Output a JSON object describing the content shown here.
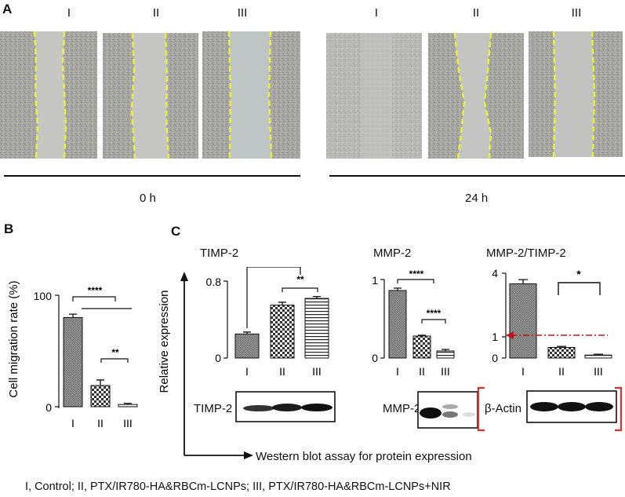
{
  "panelA": {
    "label": "A",
    "group_labels_0h": [
      "I",
      "II",
      "III"
    ],
    "group_labels_24h": [
      "I",
      "II",
      "III"
    ],
    "time_0h": "0 h",
    "time_24h": "24 h"
  },
  "panelB": {
    "label": "B",
    "ylabel": "Cell migration rate (%)",
    "yticks": [
      "0",
      "100"
    ],
    "categories": [
      "I",
      "II",
      "III"
    ],
    "sig_top": "****",
    "sig_bottom": "**"
  },
  "panelC": {
    "label": "C",
    "ylabel": "Relative expression",
    "xlabel": "Western blot assay for protein expression",
    "timp2": {
      "title": "TIMP-2",
      "yticks": [
        "0",
        "0.8"
      ],
      "categories": [
        "I",
        "II",
        "III"
      ],
      "sig1": "****",
      "sig2": "**",
      "blot_label": "TIMP-2"
    },
    "mmp2": {
      "title": "MMP-2",
      "yticks": [
        "0",
        "1"
      ],
      "categories": [
        "I",
        "II",
        "III"
      ],
      "sig1": "****",
      "sig2": "****",
      "blot_label": "MMP-2"
    },
    "ratio": {
      "title": "MMP-2/TIMP-2",
      "yticks": [
        "0",
        "1",
        "4"
      ],
      "categories": [
        "I",
        "II",
        "III"
      ],
      "sig1": "*",
      "blot_label": "β-Actin"
    }
  },
  "legend": "I, Control; II, PTX/IR780-HA&RBCm-LCNPs; III,  PTX/IR780-HA&RBCm-LCNPs+NIR",
  "chart_data": [
    {
      "type": "bar",
      "title": "",
      "ylabel": "Cell migration rate (%)",
      "categories": [
        "I",
        "II",
        "III"
      ],
      "values": [
        80,
        19,
        2
      ],
      "errors": [
        3,
        5,
        1
      ],
      "ylim": [
        0,
        100
      ]
    },
    {
      "type": "bar",
      "title": "TIMP-2",
      "ylabel": "Relative expression",
      "categories": [
        "I",
        "II",
        "III"
      ],
      "values": [
        0.25,
        0.55,
        0.62
      ],
      "errors": [
        0.02,
        0.03,
        0.02
      ],
      "ylim": [
        0,
        0.8
      ]
    },
    {
      "type": "bar",
      "title": "MMP-2",
      "ylabel": "Relative expression",
      "categories": [
        "I",
        "II",
        "III"
      ],
      "values": [
        0.86,
        0.28,
        0.09
      ],
      "errors": [
        0.03,
        0.01,
        0.02
      ],
      "ylim": [
        0,
        1
      ]
    },
    {
      "type": "bar",
      "title": "MMP-2/TIMP-2",
      "ylabel": "Relative expression",
      "categories": [
        "I",
        "II",
        "III"
      ],
      "values": [
        3.5,
        0.5,
        0.14
      ],
      "errors": [
        0.2,
        0.05,
        0.04
      ],
      "ylim": [
        0,
        4
      ]
    }
  ],
  "colors": {
    "wound_edge": "#e8f03c",
    "arrow_red": "#c0141c",
    "bracket_red": "#e03030"
  }
}
